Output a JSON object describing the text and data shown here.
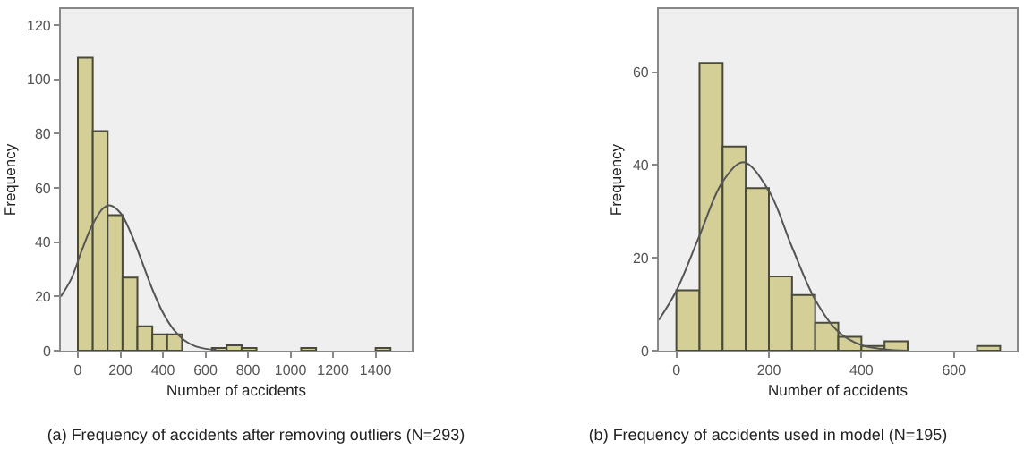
{
  "chart_data": [
    {
      "type": "histogram",
      "xlabel": "Number of accidents",
      "ylabel": "Frequency",
      "annotations": [
        "(a) Frequency of accidents after removing outliers (N=293)"
      ],
      "xlim": [
        -80,
        1570
      ],
      "ylim": [
        0,
        126
      ],
      "xticks": [
        0,
        200,
        400,
        600,
        800,
        1000,
        1200,
        1400
      ],
      "yticks": [
        0,
        20,
        40,
        60,
        80,
        100,
        120
      ],
      "grid": false,
      "bins": [
        0,
        70,
        140,
        210,
        280,
        350,
        420,
        490,
        560,
        630,
        700,
        770,
        840,
        910,
        980,
        1050,
        1120,
        1190,
        1260,
        1330,
        1400,
        1470
      ],
      "series": [
        {
          "color": "#d3cf96",
          "values": [
            108,
            81,
            50,
            27,
            9,
            6,
            6,
            0,
            0,
            1,
            2,
            1,
            0,
            0,
            0,
            1,
            0,
            0,
            0,
            0,
            1
          ]
        },
        {
          "type": "line",
          "color": "#555555",
          "x": [
            -80,
            -30,
            20,
            70,
            120,
            150,
            200,
            250,
            300,
            350,
            400,
            450,
            500,
            550,
            600,
            650
          ],
          "values": [
            20,
            26.7,
            37.3,
            46.7,
            52.6,
            53.6,
            50.8,
            43.2,
            33.1,
            22.7,
            14,
            7.8,
            3.9,
            1.7,
            0.7,
            0.3
          ]
        }
      ]
    },
    {
      "type": "histogram",
      "xlabel": "Number of accidents",
      "ylabel": "Frequency",
      "annotations": [
        "(b) Frequency of accidents used in model (N=195)"
      ],
      "xlim": [
        -38,
        736
      ],
      "ylim": [
        0,
        73.6
      ],
      "xticks": [
        0,
        200,
        400,
        600
      ],
      "yticks": [
        0,
        20,
        40,
        60
      ],
      "grid": false,
      "bins": [
        0,
        50,
        100,
        150,
        200,
        250,
        300,
        350,
        400,
        450,
        500,
        550,
        600,
        650,
        700
      ],
      "series": [
        {
          "color": "#d3cf96",
          "values": [
            13,
            62,
            44,
            35,
            16,
            12,
            6,
            3,
            1,
            2,
            0,
            0,
            0,
            1
          ]
        },
        {
          "type": "line",
          "color": "#555555",
          "x": [
            -38,
            0,
            50,
            100,
            145,
            200,
            250,
            300,
            350,
            400,
            450,
            500
          ],
          "values": [
            6.6,
            12.9,
            24.8,
            36.4,
            40.6,
            34.4,
            22.3,
            11,
            4.1,
            1.2,
            0.3,
            0
          ]
        }
      ]
    }
  ]
}
